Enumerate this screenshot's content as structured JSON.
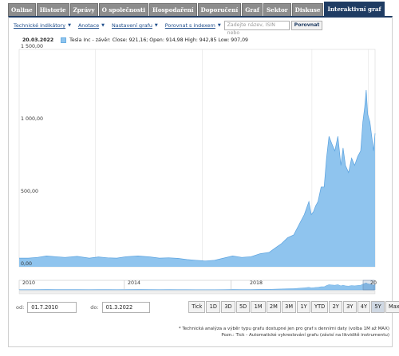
{
  "tabs": [
    {
      "label": "Online",
      "active": false
    },
    {
      "label": "Historie",
      "active": false
    },
    {
      "label": "Zprávy",
      "active": false
    },
    {
      "label": "O společnosti",
      "active": false
    },
    {
      "label": "Hospodaření",
      "active": false
    },
    {
      "label": "Doporučení",
      "active": false
    },
    {
      "label": "Graf",
      "active": false
    },
    {
      "label": "Sektor",
      "active": false
    },
    {
      "label": "Diskuse",
      "active": false
    },
    {
      "label": "Interaktivní graf",
      "active": true
    }
  ],
  "toolbar": {
    "items": [
      "Technické indikátory",
      "Anotace",
      "Nastavení grafu",
      "Porovnat s indexem"
    ],
    "compare_placeholder": "Zadejte název, ISIN nebo",
    "compare_button": "Porovnat"
  },
  "legend": {
    "date": "20.03.2022",
    "text": "Tesla Inc - závěr: Close: 921,16; Open: 914,98 High: 942,85 Low: 907,09"
  },
  "colors": {
    "area_fill": "#8fc4ee",
    "area_line": "#5aa2df",
    "active_tab": "#1f3c63"
  },
  "chart_data": {
    "type": "area",
    "title": "",
    "xlabel": "",
    "ylabel": "",
    "ylim": [
      0,
      1500
    ],
    "y_ticks": [
      "1 500,00",
      "1 000,00",
      "500,00",
      "0,00"
    ],
    "y_tick_values": [
      1500,
      1000,
      500,
      0
    ],
    "x_range": [
      2010.5,
      2022.17
    ],
    "grid": "vertical",
    "series": [
      {
        "name": "Tesla Inc - závěr",
        "x": [
          2010.5,
          2010.8,
          2011.1,
          2011.4,
          2011.7,
          2012.0,
          2012.4,
          2012.8,
          2013.1,
          2013.4,
          2013.7,
          2014.0,
          2014.4,
          2014.8,
          2015.1,
          2015.4,
          2015.7,
          2016.0,
          2016.3,
          2016.6,
          2016.9,
          2017.2,
          2017.5,
          2017.8,
          2018.1,
          2018.4,
          2018.7,
          2018.9,
          2019.1,
          2019.3,
          2019.5,
          2019.7,
          2019.85,
          2020.0,
          2020.08,
          2020.15,
          2020.22,
          2020.3,
          2020.4,
          2020.5,
          2020.58,
          2020.66,
          2020.75,
          2020.85,
          2020.95,
          2021.05,
          2021.12,
          2021.2,
          2021.3,
          2021.4,
          2021.5,
          2021.6,
          2021.7,
          2021.77,
          2021.83,
          2021.88,
          2021.93,
          2022.0,
          2022.06,
          2022.12,
          2022.17
        ],
        "values": [
          60,
          60,
          65,
          75,
          70,
          65,
          72,
          60,
          68,
          62,
          60,
          70,
          75,
          68,
          60,
          62,
          58,
          50,
          45,
          40,
          45,
          60,
          75,
          65,
          70,
          90,
          100,
          130,
          160,
          200,
          220,
          300,
          360,
          450,
          360,
          380,
          420,
          450,
          550,
          550,
          750,
          900,
          850,
          800,
          900,
          700,
          820,
          700,
          650,
          750,
          700,
          760,
          800,
          1000,
          1100,
          1220,
          1050,
          1000,
          900,
          800,
          921
        ]
      }
    ]
  },
  "navigator": {
    "labels": [
      "2010",
      "2014",
      "2018",
      "20"
    ]
  },
  "dates": {
    "from_label": "od:",
    "from_value": "01.7.2010",
    "to_label": "do:",
    "to_value": "01.3.2022"
  },
  "ranges": [
    {
      "label": "Tick",
      "active": false
    },
    {
      "label": "1D",
      "active": false
    },
    {
      "label": "3D",
      "active": false
    },
    {
      "label": "5D",
      "active": false
    },
    {
      "label": "1M",
      "active": false
    },
    {
      "label": "2M",
      "active": false
    },
    {
      "label": "3M",
      "active": false
    },
    {
      "label": "1Y",
      "active": false
    },
    {
      "label": "YTD",
      "active": false
    },
    {
      "label": "2Y",
      "active": false
    },
    {
      "label": "3Y",
      "active": false
    },
    {
      "label": "4Y",
      "active": false
    },
    {
      "label": "5Y",
      "active": true
    },
    {
      "label": "Max",
      "active": false
    }
  ],
  "footnote": {
    "line1": "* Technická analýza a výběr typu grafu dostupné jen pro graf s denními daty (volba 1M až MAX)",
    "line2": "Pozn.: Tick - Automatické vykreslování grafu (závisí na likviditě instrumentu)"
  }
}
